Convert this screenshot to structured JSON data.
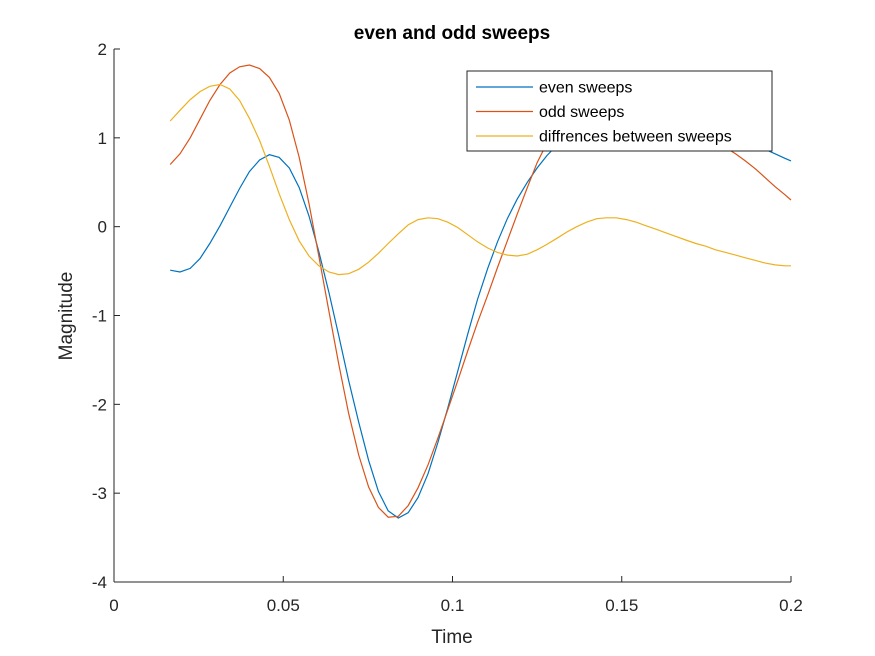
{
  "chart_data": {
    "type": "line",
    "title": "even and odd sweeps",
    "xlabel": "Time",
    "ylabel": "Magnitude",
    "xlim": [
      0,
      0.2
    ],
    "ylim": [
      -4,
      2
    ],
    "xticks": [
      0,
      0.05,
      0.1,
      0.15,
      0.2
    ],
    "xtick_labels": [
      "0",
      "0.05",
      "0.1",
      "0.15",
      "0.2"
    ],
    "yticks": [
      2,
      1,
      0,
      -1,
      -2,
      -3,
      -4
    ],
    "ytick_labels": [
      "2",
      "1",
      "0",
      "-1",
      "-2",
      "-3",
      "-4"
    ],
    "grid": false,
    "legend_position": "top-right",
    "series": [
      {
        "name": "even sweeps",
        "color": "#0072BD",
        "x": [
          0.0166,
          0.0195,
          0.0225,
          0.0254,
          0.0283,
          0.0313,
          0.0342,
          0.0371,
          0.04,
          0.043,
          0.0459,
          0.0488,
          0.0518,
          0.0547,
          0.0576,
          0.0605,
          0.0635,
          0.0664,
          0.0693,
          0.0723,
          0.0752,
          0.0781,
          0.081,
          0.084,
          0.0869,
          0.0898,
          0.0928,
          0.0957,
          0.0986,
          0.1016,
          0.1045,
          0.1074,
          0.1104,
          0.1133,
          0.1162,
          0.1191,
          0.1221,
          0.125,
          0.1279,
          0.1309,
          0.1338,
          0.1367,
          0.1396,
          0.1426,
          0.1455,
          0.1484,
          0.1514,
          0.1543,
          0.1572,
          0.1602,
          0.1631,
          0.166,
          0.1689,
          0.1719,
          0.1748,
          0.1777,
          0.1807,
          0.1836,
          0.1865,
          0.1895,
          0.1924,
          0.1953,
          0.1982,
          0.2
        ],
        "values": [
          -0.49,
          -0.51,
          -0.47,
          -0.36,
          -0.19,
          0.01,
          0.22,
          0.43,
          0.62,
          0.75,
          0.81,
          0.78,
          0.66,
          0.44,
          0.12,
          -0.28,
          -0.74,
          -1.23,
          -1.73,
          -2.2,
          -2.63,
          -2.98,
          -3.2,
          -3.28,
          -3.22,
          -3.05,
          -2.78,
          -2.43,
          -2.04,
          -1.62,
          -1.21,
          -0.82,
          -0.47,
          -0.17,
          0.09,
          0.31,
          0.5,
          0.66,
          0.8,
          0.92,
          1.03,
          1.12,
          1.2,
          1.27,
          1.32,
          1.35,
          1.37,
          1.38,
          1.37,
          1.35,
          1.33,
          1.3,
          1.26,
          1.22,
          1.17,
          1.12,
          1.07,
          1.02,
          0.97,
          0.92,
          0.87,
          0.82,
          0.77,
          0.74
        ]
      },
      {
        "name": "odd sweeps",
        "color": "#D95319",
        "x": [
          0.0166,
          0.0195,
          0.0225,
          0.0254,
          0.0283,
          0.0313,
          0.0342,
          0.0371,
          0.04,
          0.043,
          0.0459,
          0.0488,
          0.0518,
          0.0547,
          0.0576,
          0.0605,
          0.0635,
          0.0664,
          0.0693,
          0.0723,
          0.0752,
          0.0781,
          0.081,
          0.084,
          0.0869,
          0.0898,
          0.0928,
          0.0957,
          0.0986,
          0.1016,
          0.1045,
          0.1074,
          0.1104,
          0.1133,
          0.1162,
          0.1191,
          0.1221,
          0.125,
          0.1279,
          0.1309,
          0.1338,
          0.1367,
          0.1396,
          0.1426,
          0.1455,
          0.1484,
          0.1514,
          0.1543,
          0.1572,
          0.1602,
          0.1631,
          0.166,
          0.1689,
          0.1719,
          0.1748,
          0.1777,
          0.1807,
          0.1836,
          0.1865,
          0.1895,
          0.1924,
          0.1953,
          0.1982,
          0.2
        ],
        "values": [
          0.7,
          0.82,
          1.0,
          1.21,
          1.42,
          1.6,
          1.73,
          1.8,
          1.82,
          1.78,
          1.68,
          1.5,
          1.2,
          0.78,
          0.26,
          -0.33,
          -0.95,
          -1.55,
          -2.1,
          -2.57,
          -2.93,
          -3.16,
          -3.27,
          -3.26,
          -3.14,
          -2.94,
          -2.68,
          -2.38,
          -2.06,
          -1.73,
          -1.4,
          -1.08,
          -0.77,
          -0.46,
          -0.16,
          0.14,
          0.44,
          0.72,
          0.94,
          1.1,
          1.21,
          1.28,
          1.32,
          1.34,
          1.34,
          1.33,
          1.31,
          1.28,
          1.25,
          1.21,
          1.17,
          1.13,
          1.09,
          1.05,
          1.0,
          0.95,
          0.89,
          0.82,
          0.74,
          0.65,
          0.55,
          0.45,
          0.36,
          0.3
        ]
      },
      {
        "name": "diffrences between sweeps",
        "color": "#EDB120",
        "x": [
          0.0166,
          0.0195,
          0.0225,
          0.0254,
          0.0283,
          0.0313,
          0.0342,
          0.0371,
          0.04,
          0.043,
          0.0459,
          0.0488,
          0.0518,
          0.0547,
          0.0576,
          0.0605,
          0.0635,
          0.0664,
          0.0693,
          0.0723,
          0.0752,
          0.0781,
          0.081,
          0.084,
          0.0869,
          0.0898,
          0.0928,
          0.0957,
          0.0986,
          0.1016,
          0.1045,
          0.1074,
          0.1104,
          0.1133,
          0.1162,
          0.1191,
          0.1221,
          0.125,
          0.1279,
          0.1309,
          0.1338,
          0.1367,
          0.1396,
          0.1426,
          0.1455,
          0.1484,
          0.1514,
          0.1543,
          0.1572,
          0.1602,
          0.1631,
          0.166,
          0.1689,
          0.1719,
          0.1748,
          0.1777,
          0.1807,
          0.1836,
          0.1865,
          0.1895,
          0.1924,
          0.1953,
          0.1982,
          0.2
        ],
        "values": [
          1.19,
          1.31,
          1.43,
          1.52,
          1.58,
          1.6,
          1.55,
          1.42,
          1.22,
          0.97,
          0.68,
          0.37,
          0.08,
          -0.16,
          -0.33,
          -0.44,
          -0.51,
          -0.54,
          -0.53,
          -0.48,
          -0.4,
          -0.3,
          -0.19,
          -0.08,
          0.02,
          0.08,
          0.1,
          0.09,
          0.05,
          -0.01,
          -0.09,
          -0.17,
          -0.24,
          -0.29,
          -0.32,
          -0.33,
          -0.31,
          -0.26,
          -0.2,
          -0.13,
          -0.06,
          0.0,
          0.05,
          0.09,
          0.1,
          0.1,
          0.08,
          0.05,
          0.01,
          -0.03,
          -0.07,
          -0.11,
          -0.15,
          -0.19,
          -0.22,
          -0.26,
          -0.29,
          -0.32,
          -0.35,
          -0.38,
          -0.41,
          -0.43,
          -0.44,
          -0.44
        ]
      }
    ]
  }
}
